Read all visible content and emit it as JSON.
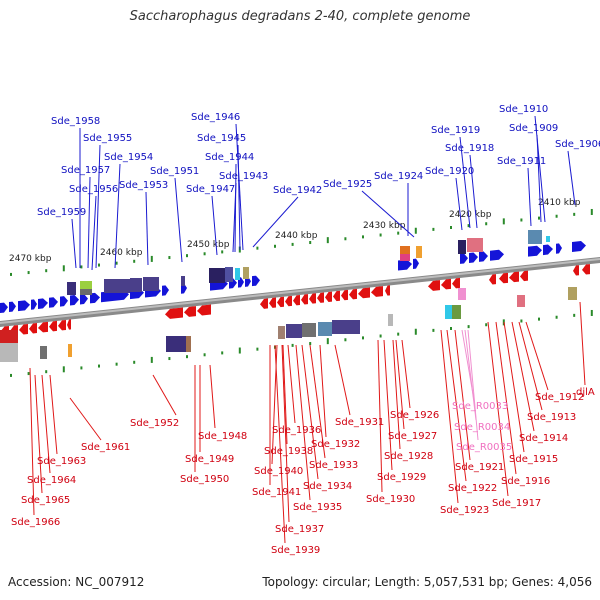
{
  "title": "Saccharophagus degradans 2-40, complete genome",
  "footer": {
    "accession": "Accession: NC_007912",
    "topology": "Topology: circular; Length: 5,057,531 bp; Genes: 4,056"
  },
  "scale_labels": [
    "2470 kbp",
    "2460 kbp",
    "2450 kbp",
    "2440 kbp",
    "2430 kbp",
    "2420 kbp",
    "2410 kbp"
  ],
  "forward_genes": [
    "Sde_1958",
    "Sde_1955",
    "Sde_1957",
    "Sde_1954",
    "Sde_1956",
    "Sde_1953",
    "Sde_1959",
    "Sde_1951",
    "Sde_1946",
    "Sde_1945",
    "Sde_1944",
    "Sde_1943",
    "Sde_1947",
    "Sde_1942",
    "Sde_1925",
    "Sde_1924",
    "Sde_1919",
    "Sde_1918",
    "Sde_1920",
    "Sde_1910",
    "Sde_1909",
    "Sde_1911",
    "Sde_1906"
  ],
  "reverse_genes": [
    "Sde_1952",
    "Sde_1961",
    "Sde_1963",
    "Sde_1964",
    "Sde_1965",
    "Sde_1966",
    "Sde_1948",
    "Sde_1949",
    "Sde_1950",
    "Sde_1936",
    "Sde_1938",
    "Sde_1940",
    "Sde_1941",
    "Sde_1937",
    "Sde_1939",
    "Sde_1935",
    "Sde_1934",
    "Sde_1933",
    "Sde_1932",
    "Sde_1931",
    "Sde_1930",
    "Sde_1929",
    "Sde_1928",
    "Sde_1927",
    "Sde_1926",
    "Sde_1921",
    "Sde_1922",
    "Sde_1923",
    "Sde_1912",
    "Sde_1913",
    "Sde_1914",
    "Sde_1915",
    "Sde_1916",
    "Sde_1917",
    "djlA"
  ],
  "rna_genes": [
    "Sde_R0033",
    "Sde_R0034",
    "Sde_R0035"
  ]
}
